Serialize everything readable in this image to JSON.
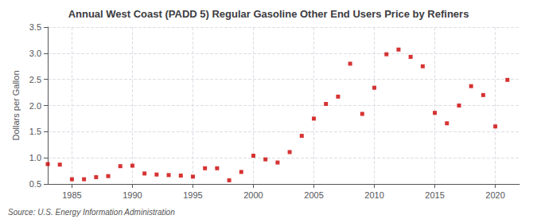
{
  "chart_data": {
    "type": "scatter",
    "title": "Annual West Coast (PADD 5) Regular Gasoline Other End Users Price by Refiners",
    "ylabel": "Dollars per Gallon",
    "source": "Source: U.S. Energy Information Administration",
    "x": [
      1983,
      1984,
      1985,
      1986,
      1987,
      1988,
      1989,
      1990,
      1991,
      1992,
      1993,
      1994,
      1995,
      1996,
      1997,
      1998,
      1999,
      2000,
      2001,
      2002,
      2003,
      2004,
      2005,
      2006,
      2007,
      2008,
      2009,
      2010,
      2011,
      2012,
      2013,
      2014,
      2015,
      2016,
      2017,
      2018,
      2019,
      2020,
      2021
    ],
    "values": [
      0.88,
      0.87,
      0.59,
      0.59,
      0.63,
      0.65,
      0.84,
      0.85,
      0.7,
      0.68,
      0.67,
      0.66,
      0.64,
      0.8,
      0.8,
      0.57,
      0.73,
      1.04,
      0.97,
      0.91,
      1.11,
      1.42,
      1.75,
      2.03,
      2.17,
      2.8,
      1.84,
      2.34,
      2.98,
      3.07,
      2.93,
      2.75,
      1.86,
      1.66,
      2.0,
      2.37,
      2.2,
      1.6,
      2.49
    ],
    "color": "#cc0000",
    "marker": "square",
    "xlim": [
      1983.0,
      2022.0
    ],
    "xticks": [
      1985,
      1990,
      1995,
      2000,
      2005,
      2010,
      2015,
      2020
    ],
    "ylim": [
      0.5,
      3.5
    ],
    "yticks": [
      0.5,
      {
        "value": 1.0,
        "label": "1.0"
      },
      1.5,
      {
        "value": 2.0,
        "label": "2.0"
      },
      2.5,
      {
        "value": 3.0,
        "label": "3.0"
      },
      3.5
    ],
    "grid": true
  }
}
